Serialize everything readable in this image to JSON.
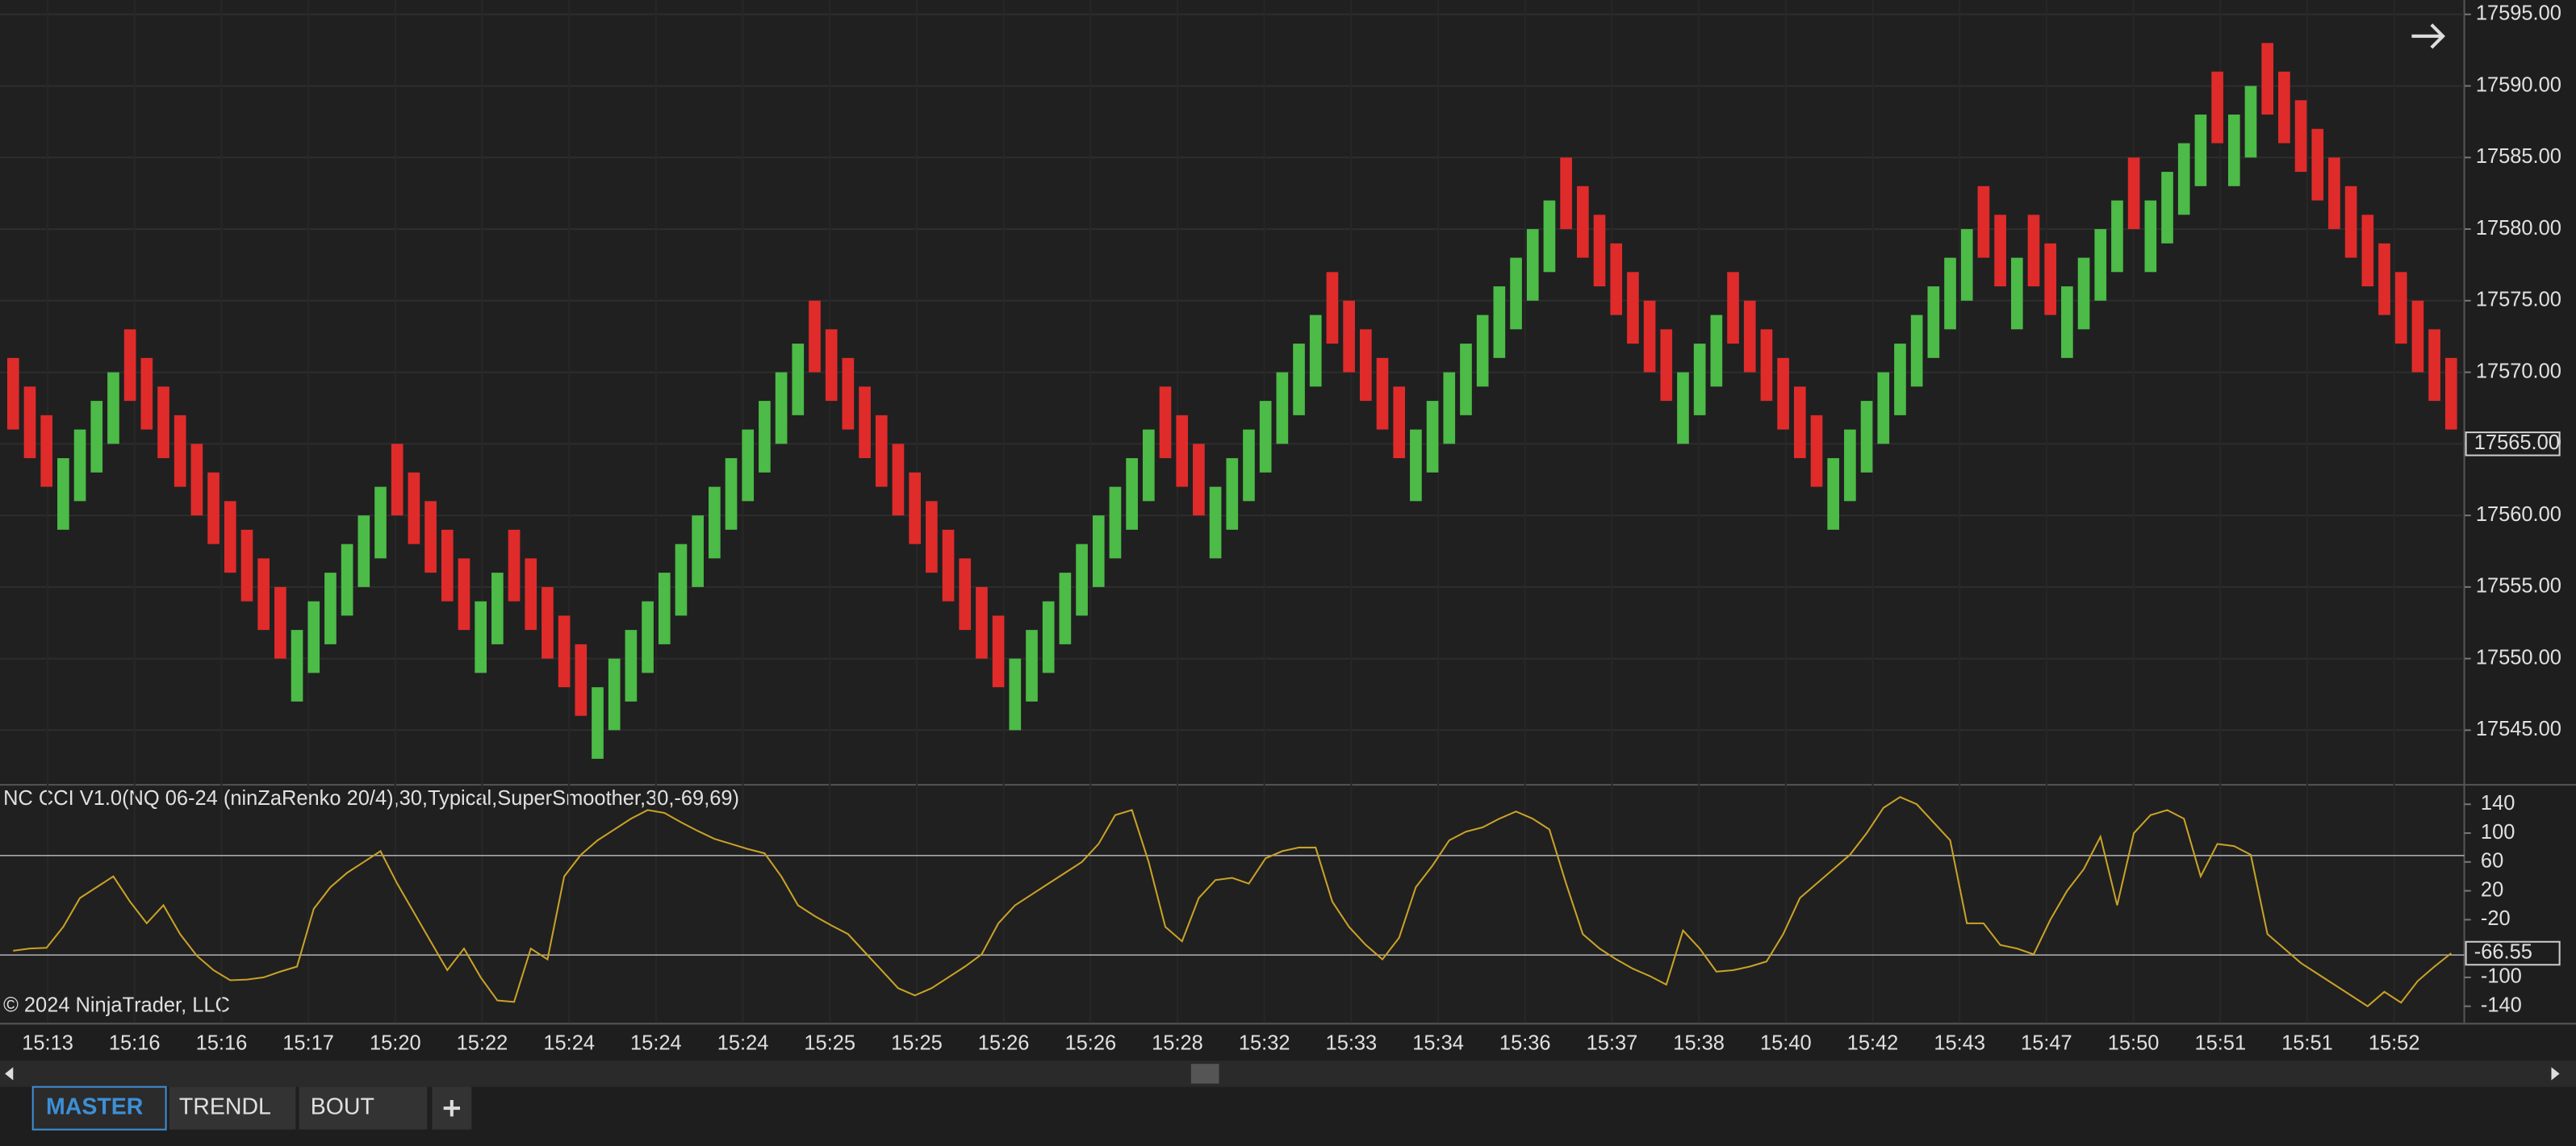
{
  "chart_data": [
    {
      "type": "candlestick",
      "open": [
        17571,
        17569,
        17567,
        17559,
        17561,
        17563,
        17565,
        17573,
        17571,
        17569,
        17567,
        17565,
        17563,
        17561,
        17559,
        17557,
        17555,
        17547,
        17549,
        17551,
        17553,
        17555,
        17557,
        17565,
        17563,
        17561,
        17559,
        17557,
        17549,
        17551,
        17559,
        17557,
        17555,
        17553,
        17551,
        17543,
        17545,
        17547,
        17549,
        17551,
        17553,
        17555,
        17557,
        17559,
        17561,
        17563,
        17565,
        17567,
        17575,
        17573,
        17571,
        17569,
        17567,
        17565,
        17563,
        17561,
        17559,
        17557,
        17555,
        17553,
        17545,
        17547,
        17549,
        17551,
        17553,
        17555,
        17557,
        17559,
        17561,
        17569,
        17567,
        17565,
        17557,
        17559,
        17561,
        17563,
        17565,
        17567,
        17569,
        17577,
        17575,
        17573,
        17571,
        17569,
        17561,
        17563,
        17565,
        17567,
        17569,
        17571,
        17573,
        17575,
        17577,
        17585,
        17583,
        17581,
        17579,
        17577,
        17575,
        17573,
        17565,
        17567,
        17569,
        17577,
        17575,
        17573,
        17571,
        17569,
        17567,
        17559,
        17561,
        17563,
        17565,
        17567,
        17569,
        17571,
        17573,
        17575,
        17583,
        17581,
        17573,
        17581,
        17579,
        17571,
        17573,
        17575,
        17577,
        17585,
        17577,
        17579,
        17581,
        17583,
        17591,
        17583,
        17585,
        17593,
        17591,
        17589,
        17587,
        17585,
        17583,
        17581,
        17579,
        17577,
        17575,
        17573,
        17571
      ],
      "close": [
        17566,
        17564,
        17562,
        17564,
        17566,
        17568,
        17570,
        17568,
        17566,
        17564,
        17562,
        17560,
        17558,
        17556,
        17554,
        17552,
        17550,
        17552,
        17554,
        17556,
        17558,
        17560,
        17562,
        17560,
        17558,
        17556,
        17554,
        17552,
        17554,
        17556,
        17554,
        17552,
        17550,
        17548,
        17546,
        17548,
        17550,
        17552,
        17554,
        17556,
        17558,
        17560,
        17562,
        17564,
        17566,
        17568,
        17570,
        17572,
        17570,
        17568,
        17566,
        17564,
        17562,
        17560,
        17558,
        17556,
        17554,
        17552,
        17550,
        17548,
        17550,
        17552,
        17554,
        17556,
        17558,
        17560,
        17562,
        17564,
        17566,
        17564,
        17562,
        17560,
        17562,
        17564,
        17566,
        17568,
        17570,
        17572,
        17574,
        17572,
        17570,
        17568,
        17566,
        17564,
        17566,
        17568,
        17570,
        17572,
        17574,
        17576,
        17578,
        17580,
        17582,
        17580,
        17578,
        17576,
        17574,
        17572,
        17570,
        17568,
        17570,
        17572,
        17574,
        17572,
        17570,
        17568,
        17566,
        17564,
        17562,
        17564,
        17566,
        17568,
        17570,
        17572,
        17574,
        17576,
        17578,
        17580,
        17578,
        17576,
        17578,
        17576,
        17574,
        17576,
        17578,
        17580,
        17582,
        17580,
        17582,
        17584,
        17586,
        17588,
        17586,
        17588,
        17590,
        17588,
        17586,
        17584,
        17582,
        17580,
        17578,
        17576,
        17574,
        17572,
        17570,
        17568,
        17566
      ],
      "up_color": "#4cbb47",
      "down_color": "#e02b2b",
      "ylim": [
        17541.3,
        17596
      ],
      "yticks": [
        {
          "value": 17545,
          "label": "17545.00"
        },
        {
          "value": 17550,
          "label": "17550.00"
        },
        {
          "value": 17555,
          "label": "17555.00"
        },
        {
          "value": 17560,
          "label": "17560.00"
        },
        {
          "value": 17565,
          "label": "17565.00"
        },
        {
          "value": 17570,
          "label": "17570.00"
        },
        {
          "value": 17575,
          "label": "17575.00"
        },
        {
          "value": 17580,
          "label": "17580.00"
        },
        {
          "value": 17585,
          "label": "17585.00"
        },
        {
          "value": 17590,
          "label": "17590.00"
        },
        {
          "value": 17595,
          "label": "17595.00"
        }
      ],
      "last_price": {
        "value": 17565,
        "label": "17565.00"
      },
      "grid": true,
      "time_labels": [
        "15:13",
        "15:16",
        "15:16",
        "15:17",
        "15:20",
        "15:22",
        "15:24",
        "15:24",
        "15:24",
        "15:25",
        "15:25",
        "15:26",
        "15:26",
        "15:28",
        "15:32",
        "15:33",
        "15:34",
        "15:36",
        "15:37",
        "15:38",
        "15:40",
        "15:42",
        "15:43",
        "15:47",
        "15:50",
        "15:51",
        "15:51",
        "15:52"
      ]
    },
    {
      "type": "line",
      "title": "NC CCI  V1.0(NQ 06-24 (ninZaRenko 20/4),30,Typical,SuperSmoother,30,-69,69)",
      "color": "#c9a227",
      "values": [
        -63,
        -60,
        -59,
        -30,
        10,
        25,
        40,
        5,
        -25,
        0,
        -40,
        -70,
        -90,
        -104,
        -103,
        -100,
        -92,
        -85,
        -5,
        25,
        45,
        60,
        75,
        30,
        -10,
        -50,
        -90,
        -60,
        -100,
        -132,
        -134,
        -60,
        -75,
        40,
        70,
        90,
        105,
        120,
        132,
        128,
        115,
        103,
        92,
        85,
        78,
        72,
        40,
        0,
        -15,
        -28,
        -40,
        -65,
        -90,
        -115,
        -125,
        -115,
        -100,
        -85,
        -68,
        -25,
        0,
        15,
        30,
        45,
        60,
        85,
        125,
        132,
        60,
        -30,
        -50,
        10,
        35,
        38,
        30,
        65,
        75,
        80,
        80,
        5,
        -30,
        -55,
        -75,
        -45,
        25,
        55,
        90,
        102,
        108,
        120,
        130,
        120,
        105,
        30,
        -40,
        -60,
        -75,
        -88,
        -98,
        -110,
        -35,
        -60,
        -92,
        -90,
        -85,
        -78,
        -40,
        10,
        30,
        50,
        70,
        100,
        135,
        150,
        140,
        115,
        90,
        -25,
        -25,
        -55,
        -60,
        -68,
        -20,
        20,
        50,
        95,
        0,
        100,
        125,
        132,
        120,
        40,
        85,
        82,
        70,
        -40,
        -60,
        -80,
        -95,
        -110,
        -125,
        -140,
        -120,
        -135,
        -105,
        -85,
        -66.55
      ],
      "levels": [
        69,
        -69
      ],
      "ylim": [
        -163,
        167
      ],
      "yticks": [
        140,
        100,
        60,
        20,
        -20,
        -100,
        -140
      ]
    }
  ],
  "copyright": "© 2024 NinjaTrader, LLC",
  "tabs": [
    "MASTER",
    "TRENDL",
    "BOUT"
  ]
}
